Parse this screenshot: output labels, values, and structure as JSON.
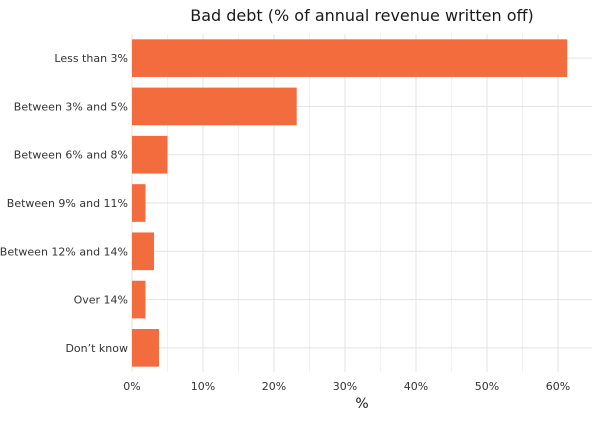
{
  "chart_data": {
    "type": "bar",
    "orientation": "horizontal",
    "title": "Bad debt (% of annual revenue written off)",
    "xlabel": "%",
    "ylabel": "",
    "categories": [
      "Less than 3%",
      "Between 3% and 5%",
      "Between 6% and 8%",
      "Between 9% and 11%",
      "Between 12% and 14%",
      "Over 14%",
      "Don’t know"
    ],
    "values": [
      61.3,
      23.2,
      5.0,
      1.9,
      3.1,
      1.9,
      3.8
    ],
    "xlim": [
      0,
      64
    ],
    "xticks": [
      0,
      10,
      20,
      30,
      40,
      50,
      60
    ],
    "xtick_labels": [
      "0%",
      "10%",
      "20%",
      "30%",
      "40%",
      "50%",
      "60%"
    ],
    "grid": true,
    "bar_color": "#f26c3e"
  }
}
